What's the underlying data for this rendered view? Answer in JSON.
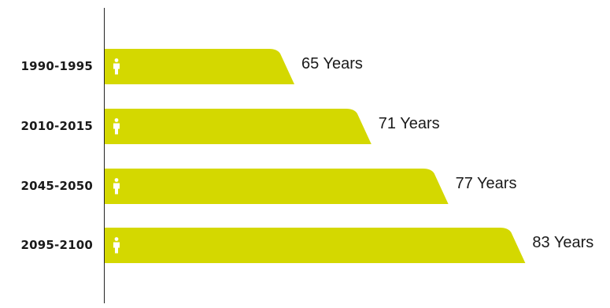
{
  "chart_data": {
    "type": "bar",
    "orientation": "horizontal",
    "categories": [
      "1990-1995",
      "2010-2015",
      "2045-2050",
      "2095-2100"
    ],
    "values": [
      65,
      71,
      77,
      83
    ],
    "value_labels": [
      "65 Years",
      "71 Years",
      "77 Years",
      "83 Years"
    ],
    "bar_color": "#d4d800",
    "icon": "person-icon",
    "icon_color": "#ffffff"
  }
}
